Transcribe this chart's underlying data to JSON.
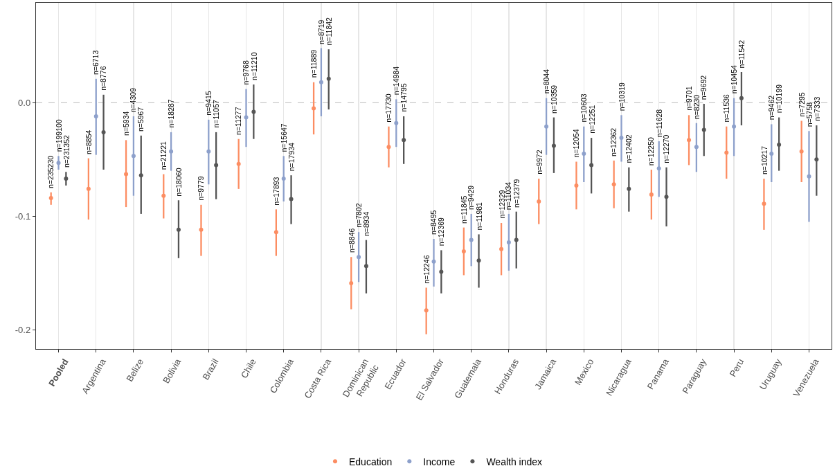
{
  "chart_data": {
    "type": "scatter",
    "categories": [
      null,
      "Pooled",
      null,
      null,
      null,
      null,
      "Argentina",
      null,
      null,
      null,
      null,
      "Belize",
      null,
      null,
      null,
      null,
      "Bolivia",
      null,
      null,
      null,
      null,
      "Brazil",
      null,
      null,
      null,
      null,
      "Chile",
      null,
      null,
      null,
      null,
      "Colombia",
      null,
      null,
      null,
      null,
      "Costa Rica",
      null,
      null,
      null,
      null,
      "Dominican Republic",
      null,
      null,
      null,
      null,
      "Ecuador",
      null,
      null,
      null,
      null,
      "El Salvador",
      null,
      null,
      null,
      null,
      "Guatemala",
      null,
      null,
      null,
      null,
      "Honduras",
      null,
      null,
      null,
      null,
      "Jamaica",
      null,
      null,
      null,
      null,
      "Mexico",
      null,
      null,
      null,
      null,
      "Nicaragua",
      null,
      null,
      null,
      null,
      "Panama",
      null,
      null,
      null,
      null,
      "Paraguay",
      null,
      null,
      null,
      null,
      "Peru",
      null,
      null,
      null,
      null,
      "Uruguay",
      null,
      null,
      null,
      null,
      "Venezuela",
      null
    ],
    "series": [
      {
        "name": "Education",
        "color": "#fc8d62",
        "values": [
          -0.084,
          null,
          null,
          null,
          null,
          -0.076,
          null,
          null,
          null,
          null,
          -0.063,
          null,
          null,
          null,
          null,
          -0.082,
          null,
          null,
          null,
          null,
          -0.112,
          null,
          null,
          null,
          null,
          -0.054,
          null,
          null,
          null,
          null,
          -0.114,
          null,
          null,
          null,
          null,
          -0.005,
          null,
          null,
          null,
          null,
          -0.159,
          null,
          null,
          null,
          null,
          -0.039,
          null,
          null,
          null,
          null,
          -0.183,
          null,
          null,
          null,
          null,
          -0.131,
          null,
          null,
          null,
          null,
          -0.129,
          null,
          null,
          null,
          null,
          -0.087,
          null,
          null,
          null,
          null,
          -0.073,
          null,
          null,
          null,
          null,
          -0.072,
          null,
          null,
          null,
          null,
          -0.081,
          null,
          null,
          null,
          null,
          -0.033,
          null,
          null,
          null,
          null,
          -0.044,
          null,
          null,
          null,
          null,
          -0.089,
          null,
          null,
          null,
          null,
          -0.043,
          null,
          null
        ],
        "errors": [
          [
            -0.09,
            -0.079
          ],
          null,
          null,
          null,
          null,
          [
            -0.103,
            -0.049
          ],
          null,
          null,
          null,
          null,
          [
            -0.092,
            -0.033
          ],
          null,
          null,
          null,
          null,
          [
            -0.102,
            -0.063
          ],
          null,
          null,
          null,
          null,
          [
            -0.135,
            -0.09
          ],
          null,
          null,
          null,
          null,
          [
            -0.076,
            -0.032
          ],
          null,
          null,
          null,
          null,
          [
            -0.135,
            -0.094
          ],
          null,
          null,
          null,
          null,
          [
            -0.028,
            0.018
          ],
          null,
          null,
          null,
          null,
          [
            -0.182,
            -0.136
          ],
          null,
          null,
          null,
          null,
          [
            -0.057,
            -0.021
          ],
          null,
          null,
          null,
          null,
          [
            -0.204,
            -0.163
          ],
          null,
          null,
          null,
          null,
          [
            -0.152,
            -0.11
          ],
          null,
          null,
          null,
          null,
          [
            -0.152,
            -0.106
          ],
          null,
          null,
          null,
          null,
          [
            -0.107,
            -0.067
          ],
          null,
          null,
          null,
          null,
          [
            -0.094,
            -0.052
          ],
          null,
          null,
          null,
          null,
          [
            -0.093,
            -0.051
          ],
          null,
          null,
          null,
          null,
          [
            -0.103,
            -0.059
          ],
          null,
          null,
          null,
          null,
          [
            -0.055,
            -0.011
          ],
          null,
          null,
          null,
          null,
          [
            -0.067,
            -0.021
          ],
          null,
          null,
          null,
          null,
          [
            -0.112,
            -0.067
          ],
          null,
          null,
          null,
          null,
          [
            -0.07,
            -0.016
          ],
          null,
          null
        ]
      },
      {
        "name": "Income",
        "color": "#8da0cb",
        "values": [
          null,
          -0.053,
          null,
          null,
          null,
          null,
          -0.012,
          null,
          null,
          null,
          null,
          -0.047,
          null,
          null,
          null,
          null,
          -0.043,
          null,
          null,
          null,
          null,
          -0.043,
          null,
          null,
          null,
          null,
          -0.013,
          null,
          null,
          null,
          null,
          -0.067,
          null,
          null,
          null,
          null,
          0.018,
          null,
          null,
          null,
          null,
          -0.136,
          null,
          null,
          null,
          null,
          -0.018,
          null,
          null,
          null,
          null,
          -0.14,
          null,
          null,
          null,
          null,
          -0.121,
          null,
          null,
          null,
          null,
          -0.123,
          null,
          null,
          null,
          null,
          -0.021,
          null,
          null,
          null,
          null,
          -0.045,
          null,
          null,
          null,
          null,
          -0.031,
          null,
          null,
          null,
          null,
          -0.058,
          null,
          null,
          null,
          null,
          -0.039,
          null,
          null,
          null,
          null,
          -0.021,
          null,
          null,
          null,
          null,
          -0.045,
          null,
          null,
          null,
          null,
          -0.065,
          null
        ],
        "errors": [
          null,
          [
            -0.059,
            -0.047
          ],
          null,
          null,
          null,
          null,
          [
            -0.046,
            0.021
          ],
          null,
          null,
          null,
          null,
          [
            -0.082,
            -0.012
          ],
          null,
          null,
          null,
          null,
          [
            -0.06,
            -0.026
          ],
          null,
          null,
          null,
          null,
          [
            -0.072,
            -0.015
          ],
          null,
          null,
          null,
          null,
          [
            -0.039,
            0.012
          ],
          null,
          null,
          null,
          null,
          [
            -0.087,
            -0.047
          ],
          null,
          null,
          null,
          null,
          [
            -0.012,
            0.048
          ],
          null,
          null,
          null,
          null,
          [
            -0.158,
            -0.114
          ],
          null,
          null,
          null,
          null,
          [
            -0.039,
            0.003
          ],
          null,
          null,
          null,
          null,
          [
            -0.162,
            -0.12
          ],
          null,
          null,
          null,
          null,
          [
            -0.144,
            -0.098
          ],
          null,
          null,
          null,
          null,
          [
            -0.148,
            -0.098
          ],
          null,
          null,
          null,
          null,
          [
            -0.046,
            0.004
          ],
          null,
          null,
          null,
          null,
          [
            -0.07,
            -0.021
          ],
          null,
          null,
          null,
          null,
          [
            -0.052,
            -0.011
          ],
          null,
          null,
          null,
          null,
          [
            -0.083,
            -0.034
          ],
          null,
          null,
          null,
          null,
          [
            -0.061,
            -0.018
          ],
          null,
          null,
          null,
          null,
          [
            -0.047,
            0.004
          ],
          null,
          null,
          null,
          null,
          [
            -0.07,
            -0.019
          ],
          null,
          null,
          null,
          null,
          [
            -0.105,
            -0.025
          ],
          null
        ]
      },
      {
        "name": "Wealth index",
        "color": "#555555",
        "values": [
          null,
          null,
          -0.067,
          null,
          null,
          null,
          null,
          -0.026,
          null,
          null,
          null,
          null,
          -0.064,
          null,
          null,
          null,
          null,
          -0.112,
          null,
          null,
          null,
          null,
          -0.055,
          null,
          null,
          null,
          null,
          -0.008,
          null,
          null,
          null,
          null,
          -0.085,
          null,
          null,
          null,
          null,
          0.021,
          null,
          null,
          null,
          null,
          -0.144,
          null,
          null,
          null,
          null,
          -0.033,
          null,
          null,
          null,
          null,
          -0.149,
          null,
          null,
          null,
          null,
          -0.139,
          null,
          null,
          null,
          null,
          -0.121,
          null,
          null,
          null,
          null,
          -0.038,
          null,
          null,
          null,
          null,
          -0.055,
          null,
          null,
          null,
          null,
          -0.076,
          null,
          null,
          null,
          null,
          -0.083,
          null,
          null,
          null,
          null,
          -0.024,
          null,
          null,
          null,
          null,
          0.004,
          null,
          null,
          null,
          null,
          -0.037,
          null,
          null,
          null,
          null,
          -0.05
        ],
        "errors": [
          null,
          null,
          [
            -0.073,
            -0.061
          ],
          null,
          null,
          null,
          null,
          [
            -0.059,
            0.007
          ],
          null,
          null,
          null,
          null,
          [
            -0.098,
            -0.029
          ],
          null,
          null,
          null,
          null,
          [
            -0.137,
            -0.086
          ],
          null,
          null,
          null,
          null,
          [
            -0.085,
            -0.026
          ],
          null,
          null,
          null,
          null,
          [
            -0.032,
            0.016
          ],
          null,
          null,
          null,
          null,
          [
            -0.107,
            -0.064
          ],
          null,
          null,
          null,
          null,
          [
            -0.006,
            0.047
          ],
          null,
          null,
          null,
          null,
          [
            -0.168,
            -0.121
          ],
          null,
          null,
          null,
          null,
          [
            -0.054,
            -0.012
          ],
          null,
          null,
          null,
          null,
          [
            -0.168,
            -0.13
          ],
          null,
          null,
          null,
          null,
          [
            -0.163,
            -0.116
          ],
          null,
          null,
          null,
          null,
          [
            -0.146,
            -0.096
          ],
          null,
          null,
          null,
          null,
          [
            -0.062,
            -0.013
          ],
          null,
          null,
          null,
          null,
          [
            -0.08,
            -0.031
          ],
          null,
          null,
          null,
          null,
          [
            -0.096,
            -0.057
          ],
          null,
          null,
          null,
          null,
          [
            -0.109,
            -0.057
          ],
          null,
          null,
          null,
          null,
          [
            -0.047,
            -0.001
          ],
          null,
          null,
          null,
          null,
          [
            -0.02,
            0.027
          ],
          null,
          null,
          null,
          null,
          [
            -0.06,
            -0.013
          ],
          null,
          null,
          null,
          null,
          [
            -0.082,
            -0.02
          ]
        ]
      }
    ],
    "annotations": [
      {
        "text": "n=235230",
        "y": -0.079
      },
      {
        "text": "n=199100",
        "x": "Pooled",
        "y": -0.047
      },
      {
        "text": "n=231352",
        "y": -0.061
      },
      {
        "text": "n=8854",
        "y": -0.049
      },
      {
        "text": "n=6713",
        "x": "Argentina",
        "y": 0.021
      },
      {
        "text": "n=8776",
        "y": 0.007
      },
      {
        "text": "n=5934",
        "y": -0.033
      },
      {
        "text": "n=4309",
        "x": "Belize",
        "y": -0.012
      },
      {
        "text": "n=5967",
        "y": -0.029
      },
      {
        "text": "n=21221",
        "y": -0.063
      },
      {
        "text": "n=18287",
        "x": "Bolivia",
        "y": -0.026
      },
      {
        "text": "n=18060",
        "y": -0.086
      },
      {
        "text": "n=9779",
        "y": -0.09
      },
      {
        "text": "n=9415",
        "x": "Brazil",
        "y": -0.015
      },
      {
        "text": "n=11057",
        "y": -0.026
      },
      {
        "text": "n=11277",
        "y": -0.032
      },
      {
        "text": "n=9768",
        "x": "Chile",
        "y": 0.012
      },
      {
        "text": "n=11210",
        "y": 0.016
      },
      {
        "text": "n=17893",
        "y": -0.094
      },
      {
        "text": "n=15647",
        "x": "Colombia",
        "y": -0.047
      },
      {
        "text": "n=17934",
        "y": -0.064
      },
      {
        "text": "n=11889",
        "y": 0.018
      },
      {
        "text": "n=8719",
        "x": "Costa Rica",
        "y": 0.048
      },
      {
        "text": "n=11842",
        "y": 0.047
      },
      {
        "text": "n=8846",
        "y": -0.136
      },
      {
        "text": "n=7802",
        "x": "Dominican Republic",
        "y": -0.114
      },
      {
        "text": "n=8934",
        "y": -0.121
      },
      {
        "text": "n=17730",
        "y": -0.021
      },
      {
        "text": "n=14984",
        "x": "Ecuador",
        "y": 0.003
      },
      {
        "text": "n=14795",
        "y": -0.012
      },
      {
        "text": "n=12246",
        "y": -0.163
      },
      {
        "text": "n=8495",
        "x": "El Salvador",
        "y": -0.12
      },
      {
        "text": "n=12369",
        "y": -0.13
      },
      {
        "text": "n=11845",
        "y": -0.11
      },
      {
        "text": "n=9429",
        "x": "Guatemala",
        "y": -0.098
      },
      {
        "text": "n=11981",
        "y": -0.116
      },
      {
        "text": "n=12329",
        "y": -0.106
      },
      {
        "text": "n=11034",
        "x": "Honduras",
        "y": -0.098
      },
      {
        "text": "n=12379",
        "y": -0.096
      },
      {
        "text": "n=9972",
        "y": -0.067
      },
      {
        "text": "n=8044",
        "x": "Jamaica",
        "y": 0.004
      },
      {
        "text": "n=10359",
        "y": -0.013
      },
      {
        "text": "n=12054",
        "y": -0.052
      },
      {
        "text": "n=10603",
        "x": "Mexico",
        "y": -0.021
      },
      {
        "text": "n=12251",
        "y": -0.031
      },
      {
        "text": "n=12362",
        "y": -0.051
      },
      {
        "text": "n=10319",
        "x": "Nicaragua",
        "y": -0.011
      },
      {
        "text": "n=12402",
        "y": -0.057
      },
      {
        "text": "n=12250",
        "y": -0.059
      },
      {
        "text": "n=11628",
        "x": "Panama",
        "y": -0.034
      },
      {
        "text": "n=12270",
        "y": -0.057
      },
      {
        "text": "n=9701",
        "y": -0.011
      },
      {
        "text": "n=8230",
        "x": "Paraguay",
        "y": -0.018
      },
      {
        "text": "n=9692",
        "y": -0.001
      },
      {
        "text": "n=11536",
        "y": -0.021
      },
      {
        "text": "n=10454",
        "x": "Peru",
        "y": 0.004
      },
      {
        "text": "n=11542",
        "y": 0.027
      },
      {
        "text": "n=10217",
        "y": -0.067
      },
      {
        "text": "n=9462",
        "x": "Uruguay",
        "y": -0.019
      },
      {
        "text": "n=10199",
        "y": -0.013
      },
      {
        "text": "n=7295",
        "y": -0.016
      },
      {
        "text": "n=5758",
        "x": "Venezuela",
        "y": -0.025
      },
      {
        "text": "n=7333",
        "y": -0.02
      }
    ],
    "ylim": [
      -0.217,
      0.088
    ],
    "yticks": [
      {
        "value": -0.2,
        "label": "-0.2"
      },
      {
        "value": -0.1,
        "label": "-0.1"
      },
      {
        "value": 0,
        "label": "0.0"
      }
    ],
    "ref_lines": [
      {
        "axis": "y",
        "value": 0,
        "color": "#bbbbbb",
        "line_style": "dashed"
      }
    ],
    "grid": "x",
    "legend": "bottom",
    "marker": "circle"
  }
}
